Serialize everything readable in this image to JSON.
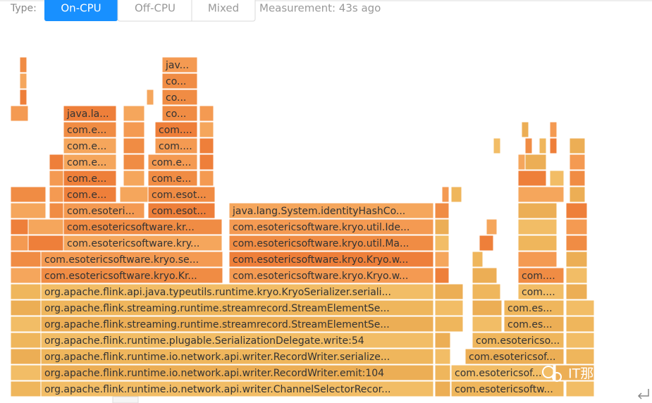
{
  "toolbar": {
    "type_label": "Type:",
    "tabs": [
      "On-CPU",
      "Off-CPU",
      "Mixed"
    ],
    "measurement": "Measurement: 43s ago"
  },
  "flame_graph": {
    "frames": [
      "org.apache.flink.runtime.io.network.api.writer.ChannelSelectorRecor...",
      "com.esotericsoftw...",
      "org.apache.flink.runtime.io.network.api.writer.RecordWriter.emit:104",
      "com.esotericsof...",
      "org.apache.flink.runtime.io.network.api.writer.RecordWriter.serialize...",
      "com.esotericsof...",
      "org.apache.flink.runtime.plugable.SerializationDelegate.write:54",
      "com.esotericso...",
      "org.apache.flink.streaming.runtime.streamrecord.StreamElementSe...",
      "com.es...",
      "org.apache.flink.streaming.runtime.streamrecord.StreamElementSe...",
      "com.es...",
      "org.apache.flink.api.java.typeutils.runtime.kryo.KryoSerializer.seriali...",
      "com....",
      "com.esotericsoftware.kryo.Kr...",
      "com.esotericsoftware.kryo.Kryo.w...",
      "com....",
      "com.esotericsoftware.kryo.se...",
      "com.esotericsoftware.kryo.Kryo.w...",
      "com.esotericsoftware.kry...",
      "com.esotericsoftware.kryo.util.Ma...",
      "com.esotericsoftware.kr...",
      "com.esotericsoftware.kryo.util.Ide...",
      "com.esoteri...",
      "com.esot...",
      "java.lang.System.identityHashCo...",
      "com.e...",
      "com.esot...",
      "com.e...",
      "com.e...",
      "com.e...",
      "com.e...",
      "com.e...",
      "com....",
      "com.e...",
      "com....",
      "java.la...",
      "co...",
      "co...",
      "co...",
      "jav..."
    ]
  },
  "watermark": "IT那活儿"
}
